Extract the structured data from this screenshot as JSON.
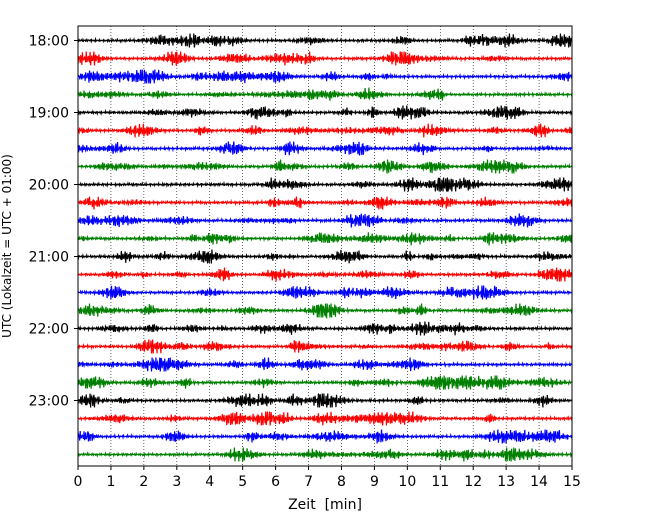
{
  "chart_data": {
    "type": "line",
    "subtype": "seismogram-helicorder",
    "xlabel": "Zeit  [min]",
    "ylabel": "UTC (Lokalzeit = UTC + 01:00)",
    "xlim": [
      0,
      15
    ],
    "x_ticks": [
      "0",
      "1",
      "2",
      "3",
      "4",
      "5",
      "6",
      "7",
      "8",
      "9",
      "10",
      "11",
      "12",
      "13",
      "14",
      "15"
    ],
    "y_ticks": [
      "18:00",
      "19:00",
      "20:00",
      "21:00",
      "22:00",
      "23:00"
    ],
    "grid": "vertical dotted at each minute",
    "trace_colors": [
      "#000000",
      "#ff0000",
      "#0000ff",
      "#008000"
    ],
    "traces": [
      {
        "start": "18:00",
        "color": "#000000"
      },
      {
        "start": "18:15",
        "color": "#ff0000"
      },
      {
        "start": "18:30",
        "color": "#0000ff"
      },
      {
        "start": "18:45",
        "color": "#008000"
      },
      {
        "start": "19:00",
        "color": "#000000"
      },
      {
        "start": "19:15",
        "color": "#ff0000"
      },
      {
        "start": "19:30",
        "color": "#0000ff"
      },
      {
        "start": "19:45",
        "color": "#008000"
      },
      {
        "start": "20:00",
        "color": "#000000"
      },
      {
        "start": "20:15",
        "color": "#ff0000"
      },
      {
        "start": "20:30",
        "color": "#0000ff"
      },
      {
        "start": "20:45",
        "color": "#008000"
      },
      {
        "start": "21:00",
        "color": "#000000"
      },
      {
        "start": "21:15",
        "color": "#ff0000"
      },
      {
        "start": "21:30",
        "color": "#0000ff"
      },
      {
        "start": "21:45",
        "color": "#008000"
      },
      {
        "start": "22:00",
        "color": "#000000"
      },
      {
        "start": "22:15",
        "color": "#ff0000"
      },
      {
        "start": "22:30",
        "color": "#0000ff"
      },
      {
        "start": "22:45",
        "color": "#008000"
      },
      {
        "start": "23:00",
        "color": "#000000"
      },
      {
        "start": "23:15",
        "color": "#ff0000"
      },
      {
        "start": "23:30",
        "color": "#0000ff"
      },
      {
        "start": "23:45",
        "color": "#008000"
      }
    ]
  }
}
